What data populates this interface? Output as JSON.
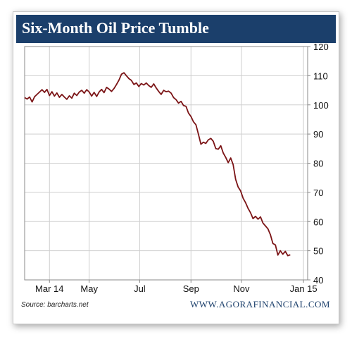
{
  "colors": {
    "header_bg": "#1b3f6b",
    "title_text": "#ffffff",
    "line": "#7b1416",
    "grid": "#cfcfcf",
    "axis": "#888888",
    "website_text": "#1b3f6b"
  },
  "chart_data": {
    "type": "line",
    "title": "Six-Month Oil Price Tumble",
    "xlabel": "",
    "ylabel": "",
    "ylim": [
      40,
      120
    ],
    "yticks": [
      40,
      50,
      60,
      70,
      80,
      90,
      100,
      110,
      120
    ],
    "xlim": [
      "2014-02-12",
      "2015-01-20"
    ],
    "xticks": [
      {
        "date": "2014-03-14",
        "label": "Mar 14"
      },
      {
        "date": "2014-05-01",
        "label": "May"
      },
      {
        "date": "2014-07-01",
        "label": "Jul"
      },
      {
        "date": "2014-09-01",
        "label": "Sep"
      },
      {
        "date": "2014-11-01",
        "label": "Nov"
      },
      {
        "date": "2015-01-15",
        "label": "Jan 15"
      }
    ],
    "grid": true,
    "legend": "none",
    "series": [
      {
        "points": [
          [
            "2014-02-12",
            102.5
          ],
          [
            "2014-02-15",
            102.0
          ],
          [
            "2014-02-18",
            102.7
          ],
          [
            "2014-02-21",
            101.0
          ],
          [
            "2014-02-24",
            102.8
          ],
          [
            "2014-02-27",
            103.6
          ],
          [
            "2014-03-02",
            104.4
          ],
          [
            "2014-03-05",
            105.2
          ],
          [
            "2014-03-08",
            104.3
          ],
          [
            "2014-03-11",
            105.3
          ],
          [
            "2014-03-14",
            103.2
          ],
          [
            "2014-03-17",
            104.5
          ],
          [
            "2014-03-20",
            103.0
          ],
          [
            "2014-03-23",
            104.1
          ],
          [
            "2014-03-26",
            102.6
          ],
          [
            "2014-03-29",
            103.6
          ],
          [
            "2014-04-01",
            102.7
          ],
          [
            "2014-04-04",
            101.9
          ],
          [
            "2014-04-07",
            103.1
          ],
          [
            "2014-04-10",
            102.3
          ],
          [
            "2014-04-13",
            104.0
          ],
          [
            "2014-04-16",
            103.2
          ],
          [
            "2014-04-19",
            104.4
          ],
          [
            "2014-04-22",
            105.0
          ],
          [
            "2014-04-25",
            104.0
          ],
          [
            "2014-04-28",
            105.2
          ],
          [
            "2014-05-01",
            104.4
          ],
          [
            "2014-05-04",
            103.0
          ],
          [
            "2014-05-07",
            104.3
          ],
          [
            "2014-05-10",
            102.9
          ],
          [
            "2014-05-13",
            104.4
          ],
          [
            "2014-05-16",
            105.3
          ],
          [
            "2014-05-19",
            104.2
          ],
          [
            "2014-05-22",
            106.0
          ],
          [
            "2014-05-25",
            105.4
          ],
          [
            "2014-05-28",
            104.6
          ],
          [
            "2014-05-31",
            105.6
          ],
          [
            "2014-06-03",
            107.0
          ],
          [
            "2014-06-06",
            108.5
          ],
          [
            "2014-06-09",
            110.5
          ],
          [
            "2014-06-12",
            111.0
          ],
          [
            "2014-06-15",
            110.0
          ],
          [
            "2014-06-18",
            109.0
          ],
          [
            "2014-06-21",
            108.4
          ],
          [
            "2014-06-24",
            107.0
          ],
          [
            "2014-06-27",
            107.5
          ],
          [
            "2014-06-30",
            106.3
          ],
          [
            "2014-07-03",
            107.3
          ],
          [
            "2014-07-06",
            106.8
          ],
          [
            "2014-07-09",
            107.5
          ],
          [
            "2014-07-12",
            106.6
          ],
          [
            "2014-07-15",
            106.0
          ],
          [
            "2014-07-18",
            107.2
          ],
          [
            "2014-07-21",
            105.8
          ],
          [
            "2014-07-24",
            104.6
          ],
          [
            "2014-07-27",
            103.6
          ],
          [
            "2014-07-30",
            105.0
          ],
          [
            "2014-08-02",
            104.5
          ],
          [
            "2014-08-05",
            104.7
          ],
          [
            "2014-08-08",
            104.0
          ],
          [
            "2014-08-11",
            102.5
          ],
          [
            "2014-08-14",
            101.8
          ],
          [
            "2014-08-17",
            100.6
          ],
          [
            "2014-08-20",
            101.2
          ],
          [
            "2014-08-23",
            99.8
          ],
          [
            "2014-08-26",
            99.5
          ],
          [
            "2014-08-29",
            97.2
          ],
          [
            "2014-09-01",
            96.0
          ],
          [
            "2014-09-04",
            94.2
          ],
          [
            "2014-09-07",
            93.2
          ],
          [
            "2014-09-10",
            90.0
          ],
          [
            "2014-09-13",
            86.5
          ],
          [
            "2014-09-16",
            87.2
          ],
          [
            "2014-09-19",
            86.8
          ],
          [
            "2014-09-22",
            88.0
          ],
          [
            "2014-09-25",
            88.5
          ],
          [
            "2014-09-28",
            87.5
          ],
          [
            "2014-10-01",
            85.0
          ],
          [
            "2014-10-04",
            84.8
          ],
          [
            "2014-10-07",
            86.0
          ],
          [
            "2014-10-10",
            83.5
          ],
          [
            "2014-10-13",
            82.0
          ],
          [
            "2014-10-16",
            80.2
          ],
          [
            "2014-10-19",
            81.8
          ],
          [
            "2014-10-22",
            79.5
          ],
          [
            "2014-10-25",
            74.5
          ],
          [
            "2014-10-28",
            71.8
          ],
          [
            "2014-10-31",
            70.5
          ],
          [
            "2014-11-03",
            68.0
          ],
          [
            "2014-11-06",
            66.5
          ],
          [
            "2014-11-09",
            64.5
          ],
          [
            "2014-11-12",
            63.0
          ],
          [
            "2014-11-15",
            61.0
          ],
          [
            "2014-11-18",
            61.8
          ],
          [
            "2014-11-21",
            60.8
          ],
          [
            "2014-11-24",
            61.6
          ],
          [
            "2014-11-27",
            59.5
          ],
          [
            "2014-11-30",
            58.5
          ],
          [
            "2014-12-03",
            57.5
          ],
          [
            "2014-12-06",
            55.5
          ],
          [
            "2014-12-09",
            52.5
          ],
          [
            "2014-12-12",
            52.0
          ],
          [
            "2014-12-15",
            48.5
          ],
          [
            "2014-12-18",
            50.0
          ],
          [
            "2014-12-21",
            48.8
          ],
          [
            "2014-12-24",
            49.8
          ],
          [
            "2014-12-27",
            48.3
          ],
          [
            "2014-12-30",
            48.6
          ]
        ]
      }
    ]
  },
  "footer": {
    "source": "Source: barcharts.net",
    "website": "WWW.AGORAFINANCIAL.COM"
  }
}
